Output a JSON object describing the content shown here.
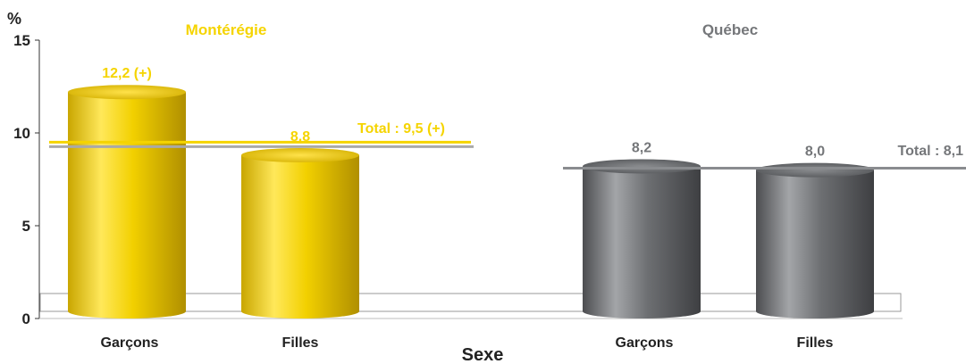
{
  "chart_data": {
    "type": "bar",
    "ylabel": "%",
    "xlabel": "Sexe",
    "ylim": [
      0,
      15
    ],
    "yticks": [
      "0",
      "5",
      "10",
      "15"
    ],
    "grid": false,
    "legend": "none",
    "groups": [
      {
        "name": "Montérégie",
        "color": "#f5d400",
        "categories": [
          "Garçons",
          "Filles"
        ],
        "values": [
          12.2,
          8.8
        ],
        "value_labels": [
          "12,2 (+)",
          "8,8"
        ],
        "total_value": 9.5,
        "total_label": "Total : 9,5 (+)"
      },
      {
        "name": "Québec",
        "color": "#6b6d70",
        "categories": [
          "Garçons",
          "Filles"
        ],
        "values": [
          8.2,
          8.0
        ],
        "value_labels": [
          "8,2",
          "8,0"
        ],
        "total_value": 8.1,
        "total_label": "Total : 8,1"
      }
    ]
  }
}
